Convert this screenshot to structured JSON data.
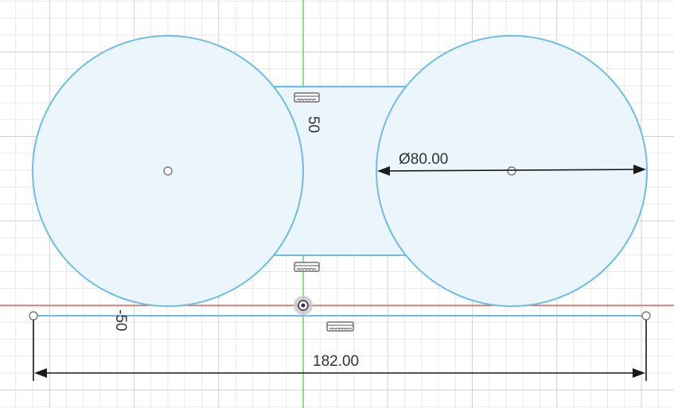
{
  "colors": {
    "background": "#ffffff",
    "grid_minor": "#e9e9e9",
    "grid_major": "#d2d2d2",
    "axis_x": "#e05a5a",
    "axis_y": "#5ad35a",
    "sketch_line": "#6fbde6",
    "sketch_fill": "#eaf5fc",
    "dimension": "#1b1b1b",
    "constraint_icon": "#555555"
  },
  "dimensions": {
    "diameter": "Ø80.00",
    "vertical_gap": "50",
    "offset": "-50",
    "total_width": "182.00"
  },
  "icons": {
    "constraint": "horizontal-constraint-icon",
    "origin": "sketch-origin-icon"
  }
}
